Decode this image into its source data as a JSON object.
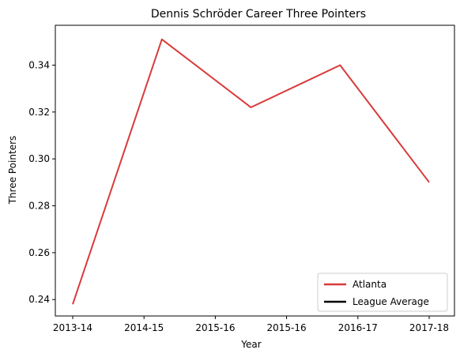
{
  "chart_data": {
    "type": "line",
    "title": "Dennis Schröder Career Three Pointers",
    "xlabel": "Year",
    "ylabel": "Three Pointers",
    "x_tick_labels": [
      "2013-14",
      "2014-15",
      "2015-16",
      "2015-16",
      "2016-17",
      "2017-18"
    ],
    "y_ticks": [
      "0.24",
      "0.26",
      "0.28",
      "0.30",
      "0.32",
      "0.34"
    ],
    "ylim": [
      0.233,
      0.357
    ],
    "grid": false,
    "legend_position": "lower right",
    "series": [
      {
        "name": "Atlanta",
        "color": "#d93a3a",
        "x": [
          0,
          1,
          2,
          3,
          4
        ],
        "values": [
          0.238,
          0.351,
          0.322,
          0.34,
          0.29
        ]
      },
      {
        "name": "League Average",
        "color": "#000000",
        "x": [],
        "values": []
      }
    ]
  }
}
